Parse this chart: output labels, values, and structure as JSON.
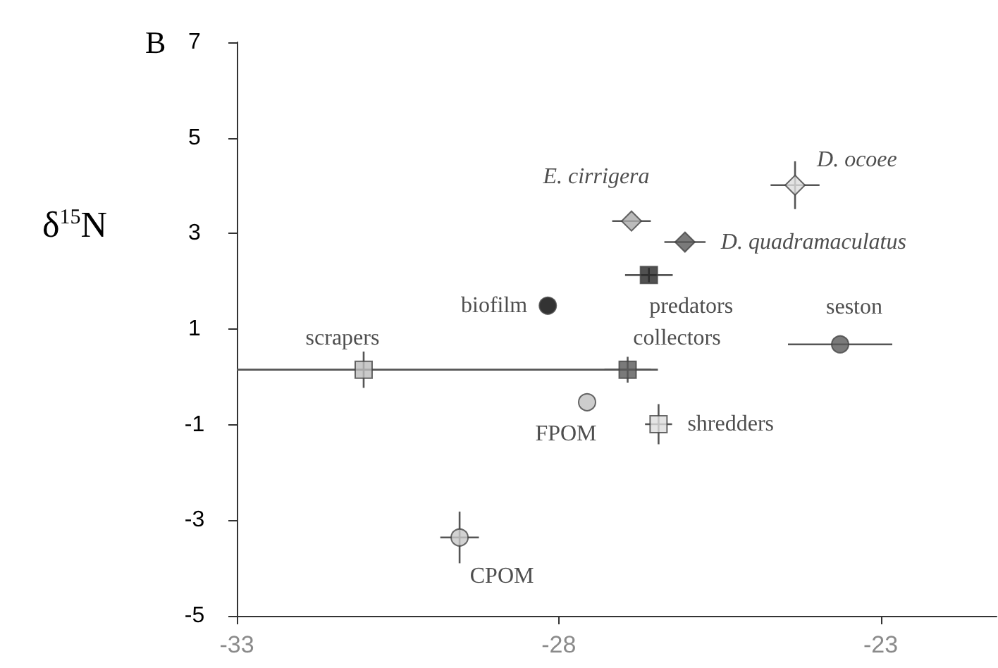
{
  "chart_data": {
    "type": "scatter",
    "title": "B",
    "ylabel": "δ$^{15}$N",
    "xlim": [
      -33,
      -21.2
    ],
    "xticks": [
      -33,
      -28,
      -23
    ],
    "ylim": [
      -5,
      7
    ],
    "yticks": [
      -5,
      -3,
      -1,
      1,
      3,
      5,
      7
    ],
    "grid": false,
    "legend": false,
    "series": [
      {
        "name": "E. cirrigera",
        "color": "#aaaaaa",
        "marker": "diamond",
        "x": [
          -26.87
        ],
        "values": [
          3.26
        ],
        "xerrors": [
          0.3
        ]
      },
      {
        "name": "D. quadramaculatus",
        "color": "#595959",
        "marker": "diamond",
        "x": [
          -26.04
        ],
        "values": [
          2.82
        ],
        "xerrors": [
          0.32
        ]
      },
      {
        "name": "D. ocoee",
        "color": "#dddddd",
        "marker": "diamond",
        "x": [
          -24.33
        ],
        "values": [
          4.01
        ],
        "xerrors": [
          0.38
        ],
        "errors": [
          0.5
        ]
      },
      {
        "name": "predators",
        "color": "#262626",
        "marker": "square",
        "x": [
          -26.6
        ],
        "values": [
          2.13
        ],
        "xerrors": [
          0.37
        ],
        "errors": [
          0.15
        ]
      },
      {
        "name": "biofilm",
        "color": "#000000",
        "marker": "circle",
        "x": [
          -28.17
        ],
        "values": [
          1.49
        ]
      },
      {
        "name": "seston",
        "color": "#595959",
        "marker": "circle",
        "x": [
          -23.63
        ],
        "values": [
          0.68
        ],
        "xerrors": [
          0.81
        ]
      },
      {
        "name": "scrapers",
        "color": "#bbbbbb",
        "marker": "square",
        "x": [
          -31.03
        ],
        "values": [
          0.15
        ],
        "xerrors": [
          [
            -33,
            -26.46
          ]
        ],
        "errors": [
          0.38
        ]
      },
      {
        "name": "collectors",
        "color": "#595959",
        "marker": "square",
        "x": [
          -26.93
        ],
        "values": [
          0.15
        ],
        "xerrors": [
          0.36
        ],
        "errors": [
          0.27
        ]
      },
      {
        "name": "FPOM",
        "color": "#c0c0c0",
        "marker": "circle",
        "x": [
          -27.56
        ],
        "values": [
          -0.53
        ]
      },
      {
        "name": "shredders",
        "color": "#dddddd",
        "marker": "square",
        "x": [
          -26.45
        ],
        "values": [
          -0.99
        ],
        "xerrors": [
          0.21
        ],
        "errors": [
          0.42
        ]
      },
      {
        "name": "CPOM",
        "color": "#c8c8c8",
        "marker": "circle",
        "x": [
          -29.54
        ],
        "values": [
          -3.36
        ],
        "xerrors": [
          0.3
        ],
        "errors": [
          0.54
        ]
      }
    ]
  }
}
